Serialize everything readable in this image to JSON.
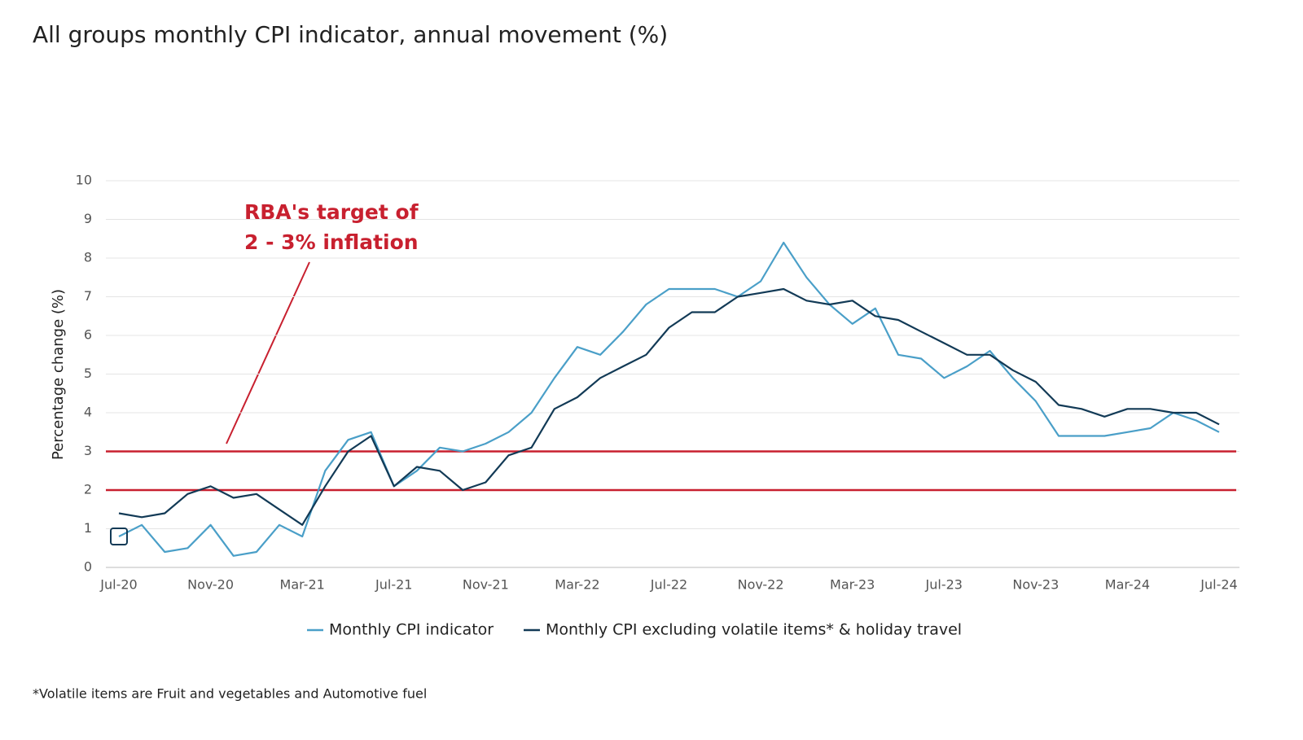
{
  "chart_data": {
    "type": "line",
    "title": "All groups monthly CPI indicator, annual movement (%)",
    "y_label": "Percentage change (%)",
    "categories": [
      "Jul-20",
      null,
      null,
      null,
      "Nov-20",
      null,
      null,
      null,
      "Mar-21",
      null,
      null,
      null,
      "Jul-21",
      null,
      null,
      null,
      "Nov-21",
      null,
      null,
      null,
      "Mar-22",
      null,
      null,
      null,
      "Jul-22",
      null,
      null,
      null,
      "Nov-22",
      null,
      null,
      null,
      "Mar-23",
      null,
      null,
      null,
      "Jul-23",
      null,
      null,
      null,
      "Nov-23",
      null,
      null,
      null,
      "Mar-24",
      null,
      null,
      null,
      "Jul-24"
    ],
    "series": [
      {
        "name": "Monthly CPI indicator",
        "color": "#4a9fc8",
        "values": [
          0.8,
          1.1,
          0.4,
          0.5,
          1.1,
          0.3,
          0.4,
          1.1,
          0.8,
          2.5,
          3.3,
          3.5,
          2.1,
          2.5,
          3.1,
          3.0,
          3.2,
          3.5,
          4.0,
          4.9,
          5.7,
          5.5,
          6.1,
          6.8,
          7.2,
          7.2,
          7.2,
          7.0,
          7.4,
          8.4,
          7.5,
          6.8,
          6.3,
          6.7,
          5.5,
          5.4,
          4.9,
          5.2,
          5.6,
          4.9,
          4.3,
          3.4,
          3.4,
          3.4,
          3.5,
          3.6,
          4.0,
          3.8,
          3.5
        ]
      },
      {
        "name": "Monthly CPI excluding volatile items* & holiday travel",
        "color": "#123a56",
        "values": [
          1.4,
          1.3,
          1.4,
          1.9,
          2.1,
          1.8,
          1.9,
          1.5,
          1.1,
          2.1,
          3.0,
          3.4,
          2.1,
          2.6,
          2.5,
          2.0,
          2.2,
          2.9,
          3.1,
          4.1,
          4.4,
          4.9,
          5.2,
          5.5,
          6.2,
          6.6,
          6.6,
          7.0,
          7.1,
          7.2,
          6.9,
          6.8,
          6.9,
          6.5,
          6.4,
          6.1,
          5.8,
          5.5,
          5.5,
          5.1,
          4.8,
          4.2,
          4.1,
          3.9,
          4.1,
          4.1,
          4.0,
          4.0,
          3.7
        ]
      }
    ],
    "reference_lines": [
      2,
      3
    ],
    "reference_color": "#c8202f",
    "annotation": [
      "RBA's target of",
      "2 - 3% inflation"
    ],
    "ylim": [
      0,
      10
    ],
    "yticks": [
      0,
      1,
      2,
      3,
      4,
      5,
      6,
      7,
      8,
      9,
      10
    ],
    "grid": true,
    "footnote": "*Volatile items are Fruit and vegetables and Automotive fuel"
  }
}
